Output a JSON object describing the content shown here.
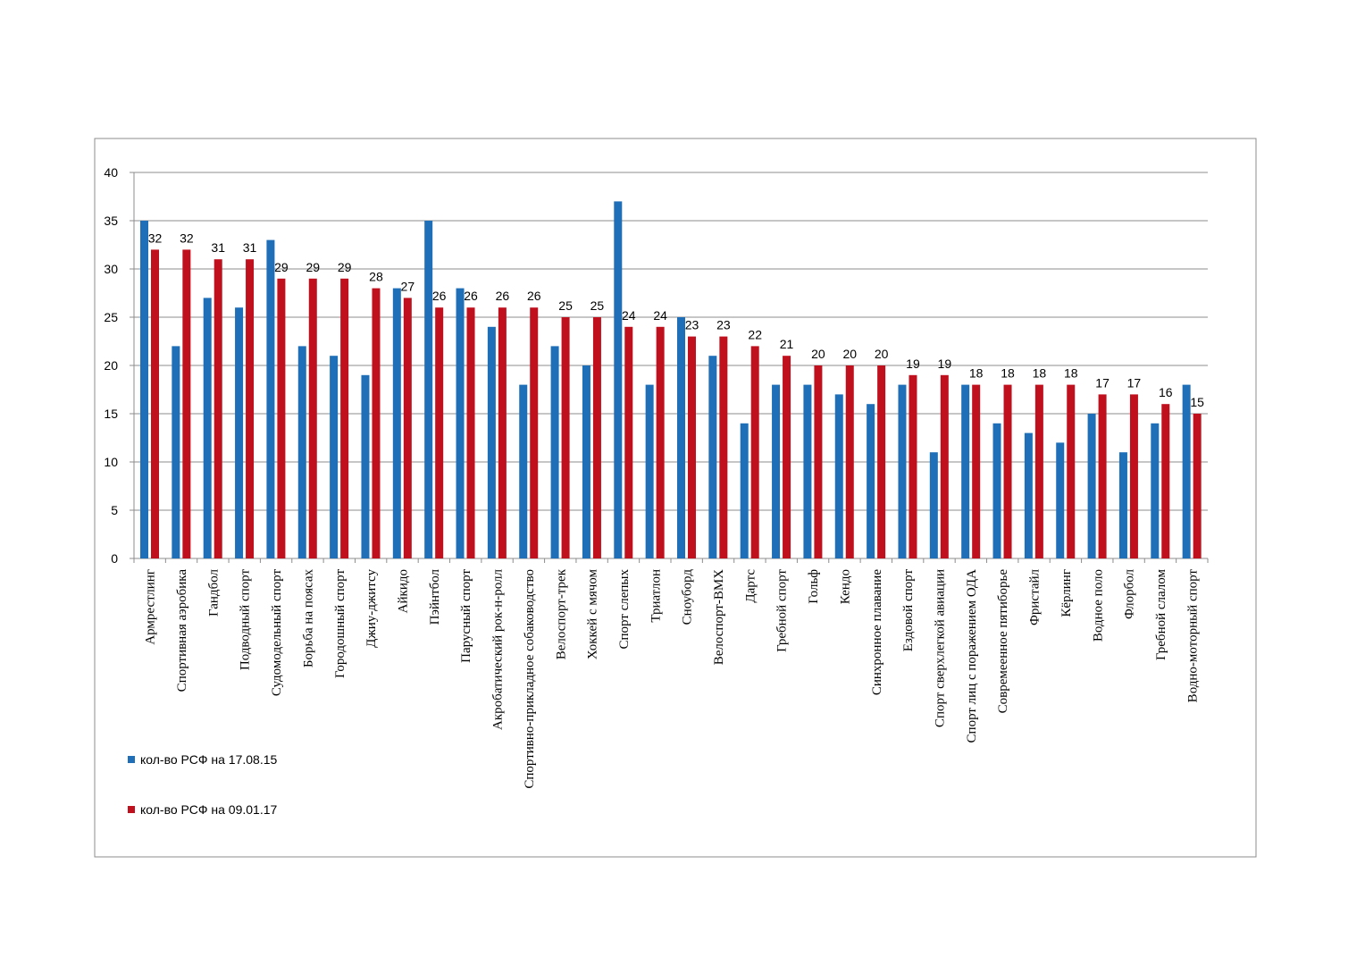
{
  "chart_data": {
    "type": "bar",
    "ylim": [
      0,
      40
    ],
    "yticks": [
      0,
      5,
      10,
      15,
      20,
      25,
      30,
      35,
      40
    ],
    "grid": true,
    "legend_position": "bottom-left",
    "categories": [
      "Армрестлинг",
      "Спортивная аэробика",
      "Гандбол",
      "Подводный спорт",
      "Судомодельный спорт",
      "Борьба на поясах",
      "Городошный спорт",
      "Джиу-джитсу",
      "Айкидо",
      "Пэйнтбол",
      "Парусный спорт",
      "Акробатический рок-н-ролл",
      "Спортивно-прикладное собаководство",
      "Велоспорт-трек",
      "Хоккей с мячом",
      "Спорт слепых",
      "Триатлон",
      "Сноуборд",
      "Велоспорт-BMX",
      "Дартс",
      "Гребной спорт",
      "Гольф",
      "Кендо",
      "Синхронное плавание",
      "Ездовой спорт",
      "Спорт сверхлегкой авиации",
      "Спорт лиц с поражением ОДА",
      "Совремеенное пятиборье",
      "Фристайл",
      "Кёрлинг",
      "Водное поло",
      "Флорбол",
      "Гребной слалом",
      "Водно-моторный спорт"
    ],
    "series": [
      {
        "name": "кол-во РСФ на 17.08.15",
        "color": "#1f6fb8",
        "values": [
          35,
          22,
          27,
          26,
          33,
          22,
          21,
          19,
          28,
          35,
          28,
          24,
          18,
          22,
          20,
          37,
          18,
          25,
          21,
          14,
          18,
          18,
          17,
          16,
          18,
          11,
          18,
          14,
          13,
          12,
          15,
          11,
          14,
          18
        ]
      },
      {
        "name": "кол-во РСФ на 09.01.17",
        "color": "#c0101e",
        "values": [
          32,
          32,
          31,
          31,
          29,
          29,
          29,
          28,
          27,
          26,
          26,
          26,
          26,
          25,
          25,
          24,
          24,
          23,
          23,
          22,
          21,
          20,
          20,
          20,
          19,
          19,
          18,
          18,
          18,
          18,
          17,
          17,
          16,
          15
        ],
        "data_labels": [
          "32",
          "32",
          "31",
          "31",
          "29",
          "29",
          "29",
          "28",
          "27",
          "26",
          "26",
          "26",
          "26",
          "25",
          "25",
          "24",
          "24",
          "23",
          "23",
          "22",
          "21",
          "20",
          "20",
          "20",
          "19",
          "19",
          "18",
          "18",
          "18",
          "18",
          "17",
          "17",
          "16",
          "15"
        ]
      }
    ]
  }
}
